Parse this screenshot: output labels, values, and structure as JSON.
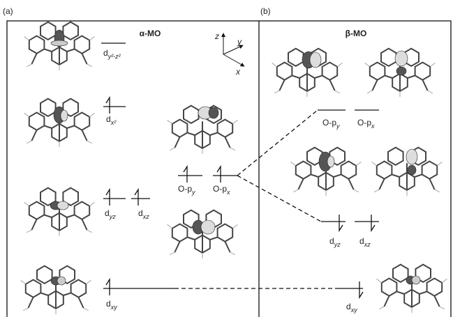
{
  "panels": {
    "a": {
      "label": "(a)",
      "title": "α-MO"
    },
    "b": {
      "label": "(b)",
      "title": "β-MO"
    }
  },
  "axes": {
    "z": "z",
    "y": "y",
    "x": "x"
  },
  "alpha_levels": [
    {
      "base": "d",
      "sub": "y²-z²"
    },
    {
      "base": "d",
      "sub": "x²"
    },
    {
      "base": "O-p",
      "sub": "y"
    },
    {
      "base": "O-p",
      "sub": "x"
    },
    {
      "base": "d",
      "sub": "yz"
    },
    {
      "base": "d",
      "sub": "xz"
    },
    {
      "base": "d",
      "sub": "xy"
    }
  ],
  "beta_levels": [
    {
      "base": "O-p",
      "sub": "y"
    },
    {
      "base": "O-p",
      "sub": "x"
    },
    {
      "base": "d",
      "sub": "yz"
    },
    {
      "base": "d",
      "sub": "xz"
    },
    {
      "base": "d",
      "sub": "xy"
    }
  ]
}
